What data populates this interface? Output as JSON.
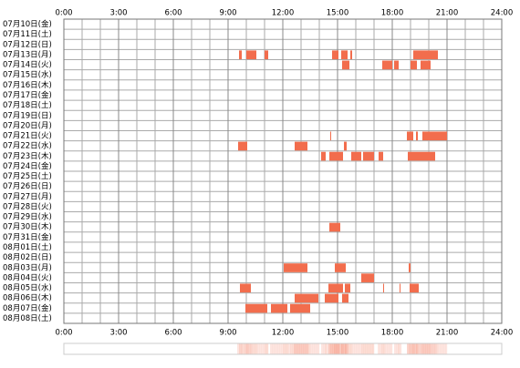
{
  "chart_data": {
    "type": "timeline",
    "color": "#f26d4d",
    "grid": true,
    "xlim": [
      0,
      24
    ],
    "xticks": [
      {
        "value": 0,
        "label": "0:00"
      },
      {
        "value": 3,
        "label": "3:00"
      },
      {
        "value": 6,
        "label": "6:00"
      },
      {
        "value": 9,
        "label": "9:00"
      },
      {
        "value": 12,
        "label": "12:00"
      },
      {
        "value": 15,
        "label": "15:00"
      },
      {
        "value": 18,
        "label": "18:00"
      },
      {
        "value": 21,
        "label": "21:00"
      },
      {
        "value": 24,
        "label": "24:00"
      }
    ],
    "categories": [
      "07月10日(金)",
      "07月11日(土)",
      "07月12日(日)",
      "07月13日(月)",
      "07月14日(火)",
      "07月15日(水)",
      "07月16日(木)",
      "07月17日(金)",
      "07月18日(土)",
      "07月19日(日)",
      "07月20日(月)",
      "07月21日(火)",
      "07月22日(水)",
      "07月23日(木)",
      "07月24日(金)",
      "07月25日(土)",
      "07月26日(日)",
      "07月27日(月)",
      "07月28日(火)",
      "07月29日(水)",
      "07月30日(木)",
      "07月31日(金)",
      "08月01日(土)",
      "08月02日(日)",
      "08月03日(月)",
      "08月04日(火)",
      "08月05日(水)",
      "08月06日(木)",
      "08月07日(金)",
      "08月08日(土)"
    ],
    "values": [
      [],
      [],
      [],
      [
        [
          9.6,
          9.75
        ],
        [
          10.0,
          10.55
        ],
        [
          11.0,
          11.2
        ],
        [
          14.7,
          15.05
        ],
        [
          15.2,
          15.55
        ],
        [
          15.7,
          15.8
        ],
        [
          19.15,
          20.5
        ]
      ],
      [
        [
          15.25,
          15.65
        ],
        [
          17.45,
          18.0
        ],
        [
          18.1,
          18.35
        ],
        [
          19.0,
          19.35
        ],
        [
          19.55,
          20.1
        ]
      ],
      [],
      [],
      [],
      [],
      [],
      [],
      [
        [
          14.6,
          14.65
        ],
        [
          18.8,
          19.15
        ],
        [
          19.3,
          19.4
        ],
        [
          19.65,
          21.0
        ]
      ],
      [
        [
          9.55,
          10.05
        ],
        [
          12.65,
          13.35
        ],
        [
          15.35,
          15.5
        ]
      ],
      [
        [
          14.1,
          14.35
        ],
        [
          14.55,
          15.3
        ],
        [
          15.75,
          16.3
        ],
        [
          16.4,
          17.0
        ],
        [
          17.25,
          17.5
        ],
        [
          18.85,
          20.35
        ]
      ],
      [],
      [],
      [],
      [],
      [],
      [],
      [
        [
          14.55,
          15.15
        ]
      ],
      [],
      [],
      [],
      [
        [
          12.05,
          13.35
        ],
        [
          14.85,
          15.45
        ],
        [
          18.9,
          19.0
        ]
      ],
      [
        [
          16.3,
          17.0
        ]
      ],
      [
        [
          9.65,
          10.25
        ],
        [
          14.5,
          15.3
        ],
        [
          15.4,
          15.7
        ],
        [
          17.5,
          17.55
        ],
        [
          18.4,
          18.45
        ],
        [
          18.95,
          19.45
        ]
      ],
      [
        [
          12.65,
          13.95
        ],
        [
          14.3,
          15.05
        ],
        [
          15.25,
          15.6
        ]
      ],
      [
        [
          9.95,
          11.15
        ],
        [
          11.35,
          12.25
        ],
        [
          12.4,
          13.5
        ]
      ],
      []
    ]
  }
}
